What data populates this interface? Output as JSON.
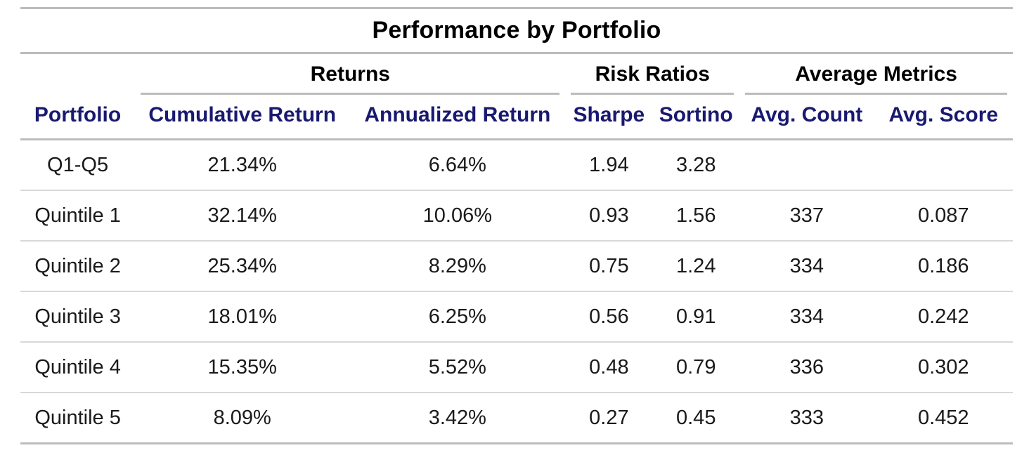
{
  "chart_data": {
    "type": "table",
    "title": "Performance by Portfolio",
    "spanners": [
      "Returns",
      "Risk Ratios",
      "Average Metrics"
    ],
    "columns": [
      "Portfolio",
      "Cumulative Return",
      "Annualized Return",
      "Sharpe",
      "Sortino",
      "Avg. Count",
      "Avg. Score"
    ],
    "rows": [
      [
        "Q1-Q5",
        "21.34%",
        "6.64%",
        "1.94",
        "3.28",
        "",
        ""
      ],
      [
        "Quintile 1",
        "32.14%",
        "10.06%",
        "0.93",
        "1.56",
        "337",
        "0.087"
      ],
      [
        "Quintile 2",
        "25.34%",
        "8.29%",
        "0.75",
        "1.24",
        "334",
        "0.186"
      ],
      [
        "Quintile 3",
        "18.01%",
        "6.25%",
        "0.56",
        "0.91",
        "334",
        "0.242"
      ],
      [
        "Quintile 4",
        "15.35%",
        "5.52%",
        "0.48",
        "0.79",
        "336",
        "0.302"
      ],
      [
        "Quintile 5",
        "8.09%",
        "3.42%",
        "0.27",
        "0.45",
        "333",
        "0.452"
      ]
    ]
  },
  "colors": {
    "column_label_text": "#191970",
    "body_text": "#1a1a1a",
    "heavy_border": "#bcbcbc",
    "light_border": "#d8d8d8"
  }
}
